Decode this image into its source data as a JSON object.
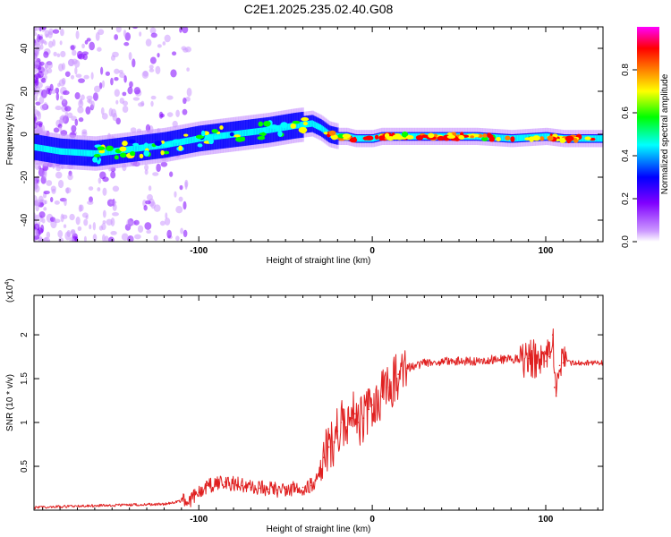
{
  "title": "C2E1.2025.235.02.40.G08",
  "chart_data": [
    {
      "type": "heatmap",
      "title": "",
      "xlabel": "Height of straight line (km)",
      "ylabel": "Frequency (Hz)",
      "xlim": [
        -195,
        133
      ],
      "ylim": [
        -50,
        50
      ],
      "xticks": [
        -100,
        0,
        100
      ],
      "yticks": [
        -40,
        -20,
        0,
        20,
        40
      ],
      "ridge": {
        "x": [
          -195,
          -180,
          -160,
          -140,
          -120,
          -100,
          -80,
          -60,
          -45,
          -35,
          -30,
          -25,
          -20,
          -15,
          -10,
          -5,
          0,
          5,
          10,
          20,
          40,
          60,
          80,
          100,
          110,
          120,
          133
        ],
        "y": [
          -6,
          -8,
          -9,
          -7,
          -5,
          -2,
          0,
          2,
          4,
          5,
          3,
          0,
          -1,
          -1,
          -2,
          -2,
          -2,
          -1,
          -1,
          -1,
          -1,
          -1,
          -2,
          -1,
          -2,
          -2,
          -2
        ]
      },
      "colorbar": {
        "label": "Normalized spectral amplitude",
        "ticks": [
          0.0,
          0.2,
          0.4,
          0.6,
          0.8
        ],
        "range": [
          0,
          1
        ],
        "colors": [
          "#ffffff",
          "#cc99ff",
          "#8000ff",
          "#0000ff",
          "#00ffff",
          "#00ff00",
          "#ffff00",
          "#ff8000",
          "#ff0000",
          "#ff00ff"
        ]
      }
    },
    {
      "type": "line",
      "title": "",
      "xlabel": "Height of straight line (km)",
      "ylabel": "SNR (10 * v/v)",
      "exponent_label": "(x10",
      "exponent_power": "4",
      "exponent_close": ")",
      "xlim": [
        -195,
        133
      ],
      "ylim": [
        0,
        2.45
      ],
      "xticks": [
        -100,
        0,
        100
      ],
      "yticks": [
        0.5,
        1.0,
        1.5,
        2.0
      ],
      "color": "#e02020",
      "series": [
        {
          "name": "SNR",
          "x": [
            -195,
            -180,
            -160,
            -140,
            -120,
            -105,
            -100,
            -95,
            -90,
            -85,
            -80,
            -75,
            -70,
            -65,
            -60,
            -55,
            -50,
            -45,
            -40,
            -35,
            -30,
            -28,
            -25,
            -22,
            -20,
            -18,
            -15,
            -12,
            -10,
            -8,
            -5,
            -2,
            0,
            5,
            10,
            15,
            20,
            25,
            30,
            40,
            50,
            60,
            70,
            80,
            90,
            95,
            100,
            102,
            104,
            105,
            106,
            108,
            110,
            120,
            133
          ],
          "y": [
            0.03,
            0.04,
            0.05,
            0.06,
            0.07,
            0.12,
            0.2,
            0.28,
            0.3,
            0.32,
            0.3,
            0.28,
            0.26,
            0.25,
            0.24,
            0.23,
            0.24,
            0.25,
            0.26,
            0.28,
            0.45,
            0.6,
            0.72,
            0.78,
            0.9,
            1.0,
            0.95,
            1.05,
            1.1,
            1.0,
            1.05,
            1.15,
            1.2,
            1.3,
            1.4,
            1.55,
            1.62,
            1.65,
            1.68,
            1.7,
            1.7,
            1.7,
            1.72,
            1.72,
            1.73,
            1.72,
            1.7,
            1.75,
            2.0,
            1.4,
            1.3,
            1.65,
            1.68,
            1.68,
            1.68
          ]
        }
      ]
    }
  ]
}
